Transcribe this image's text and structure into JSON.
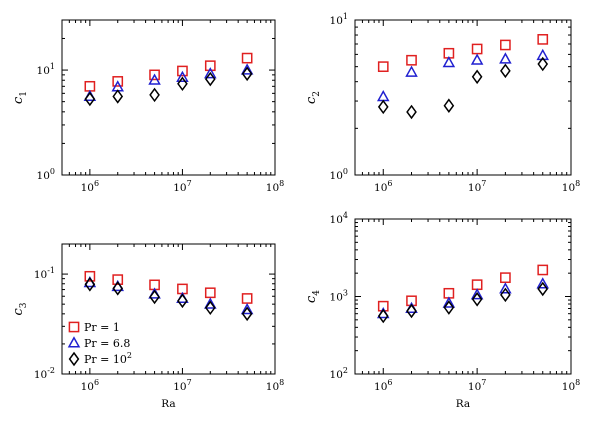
{
  "chart_data": [
    {
      "type": "scatter",
      "ylabel": "c",
      "ylabel_sub": "1",
      "xlabel": "",
      "xscale": "log",
      "yscale": "log",
      "xlim": [
        500000,
        100000000
      ],
      "ylim": [
        1,
        30
      ],
      "x_ticks": [
        {
          "value": 1000000,
          "base": "10",
          "exp": "6"
        },
        {
          "value": 10000000,
          "base": "10",
          "exp": "7"
        },
        {
          "value": 100000000,
          "base": "10",
          "exp": "8"
        }
      ],
      "y_ticks": [
        {
          "value": 1,
          "base": "10",
          "exp": "0"
        },
        {
          "value": 10,
          "base": "10",
          "exp": "1"
        }
      ],
      "x": [
        1000000,
        2000000,
        5000000,
        10000000,
        20000000,
        50000000
      ],
      "series": [
        {
          "name": "Pr=1",
          "marker": "square",
          "color": "#e02020",
          "values": [
            7.0,
            7.8,
            9.0,
            9.8,
            11.0,
            13.0
          ]
        },
        {
          "name": "Pr=6.8",
          "marker": "triangle",
          "color": "#2020d0",
          "values": [
            5.6,
            6.9,
            8.0,
            8.5,
            9.2,
            10.0
          ]
        },
        {
          "name": "Pr=10^2",
          "marker": "diamond",
          "color": "#000000",
          "values": [
            5.3,
            5.6,
            5.8,
            7.4,
            8.2,
            9.2
          ]
        }
      ]
    },
    {
      "type": "scatter",
      "ylabel": "c",
      "ylabel_sub": "2",
      "xlabel": "",
      "xscale": "log",
      "yscale": "log",
      "xlim": [
        500000,
        100000000
      ],
      "ylim": [
        1,
        10
      ],
      "x_ticks": [
        {
          "value": 1000000,
          "base": "10",
          "exp": "6"
        },
        {
          "value": 10000000,
          "base": "10",
          "exp": "7"
        },
        {
          "value": 100000000,
          "base": "10",
          "exp": "8"
        }
      ],
      "y_ticks": [
        {
          "value": 1,
          "base": "10",
          "exp": "0"
        },
        {
          "value": 10,
          "base": "10",
          "exp": "1"
        }
      ],
      "x": [
        1000000,
        2000000,
        5000000,
        10000000,
        20000000,
        50000000
      ],
      "series": [
        {
          "name": "Pr=1",
          "marker": "square",
          "color": "#e02020",
          "values": [
            5.0,
            5.5,
            6.1,
            6.5,
            6.9,
            7.5
          ]
        },
        {
          "name": "Pr=6.8",
          "marker": "triangle",
          "color": "#2020d0",
          "values": [
            3.2,
            4.6,
            5.3,
            5.5,
            5.6,
            5.9
          ]
        },
        {
          "name": "Pr=10^2",
          "marker": "diamond",
          "color": "#000000",
          "values": [
            2.75,
            2.55,
            2.8,
            4.3,
            4.7,
            5.2
          ]
        }
      ]
    },
    {
      "type": "scatter",
      "ylabel": "c",
      "ylabel_sub": "3",
      "xlabel": "Ra",
      "xscale": "log",
      "yscale": "log",
      "xlim": [
        500000,
        100000000
      ],
      "ylim": [
        0.01,
        0.2
      ],
      "x_ticks": [
        {
          "value": 1000000,
          "base": "10",
          "exp": "6"
        },
        {
          "value": 10000000,
          "base": "10",
          "exp": "7"
        },
        {
          "value": 100000000,
          "base": "10",
          "exp": "8"
        }
      ],
      "y_ticks": [
        {
          "value": 0.01,
          "base": "10",
          "exp": "-2"
        },
        {
          "value": 0.1,
          "base": "10",
          "exp": "-1"
        }
      ],
      "x": [
        1000000,
        2000000,
        5000000,
        10000000,
        20000000,
        50000000
      ],
      "series": [
        {
          "name": "Pr=1",
          "marker": "square",
          "color": "#e02020",
          "values": [
            0.095,
            0.088,
            0.078,
            0.071,
            0.065,
            0.057
          ]
        },
        {
          "name": "Pr=6.8",
          "marker": "triangle",
          "color": "#2020d0",
          "values": [
            0.082,
            0.075,
            0.063,
            0.057,
            0.05,
            0.044
          ]
        },
        {
          "name": "Pr=10^2",
          "marker": "diamond",
          "color": "#000000",
          "values": [
            0.079,
            0.072,
            0.059,
            0.054,
            0.046,
            0.04
          ]
        }
      ],
      "legend": {
        "placement": "lower-left",
        "entries": [
          {
            "marker": "square",
            "color": "#e02020",
            "text": "Pr = 1"
          },
          {
            "marker": "triangle",
            "color": "#2020d0",
            "text": "Pr = 6.8"
          },
          {
            "marker": "diamond",
            "color": "#000000",
            "text": "Pr = 10",
            "sup": "2"
          }
        ]
      }
    },
    {
      "type": "scatter",
      "ylabel": "c",
      "ylabel_sub": "4",
      "xlabel": "Ra",
      "xscale": "log",
      "yscale": "log",
      "xlim": [
        500000,
        100000000
      ],
      "ylim": [
        100,
        10000
      ],
      "x_ticks": [
        {
          "value": 1000000,
          "base": "10",
          "exp": "6"
        },
        {
          "value": 10000000,
          "base": "10",
          "exp": "7"
        },
        {
          "value": 100000000,
          "base": "10",
          "exp": "8"
        }
      ],
      "y_ticks": [
        {
          "value": 100,
          "base": "10",
          "exp": "2"
        },
        {
          "value": 1000,
          "base": "10",
          "exp": "3"
        },
        {
          "value": 10000,
          "base": "10",
          "exp": "4"
        }
      ],
      "x": [
        1000000,
        2000000,
        5000000,
        10000000,
        20000000,
        50000000
      ],
      "series": [
        {
          "name": "Pr=1",
          "marker": "square",
          "color": "#e02020",
          "values": [
            750,
            880,
            1100,
            1420,
            1750,
            2200
          ]
        },
        {
          "name": "Pr=6.8",
          "marker": "triangle",
          "color": "#2020d0",
          "values": [
            600,
            700,
            820,
            1050,
            1250,
            1450
          ]
        },
        {
          "name": "Pr=10^2",
          "marker": "diamond",
          "color": "#000000",
          "values": [
            560,
            650,
            720,
            920,
            1050,
            1250
          ]
        }
      ]
    }
  ]
}
